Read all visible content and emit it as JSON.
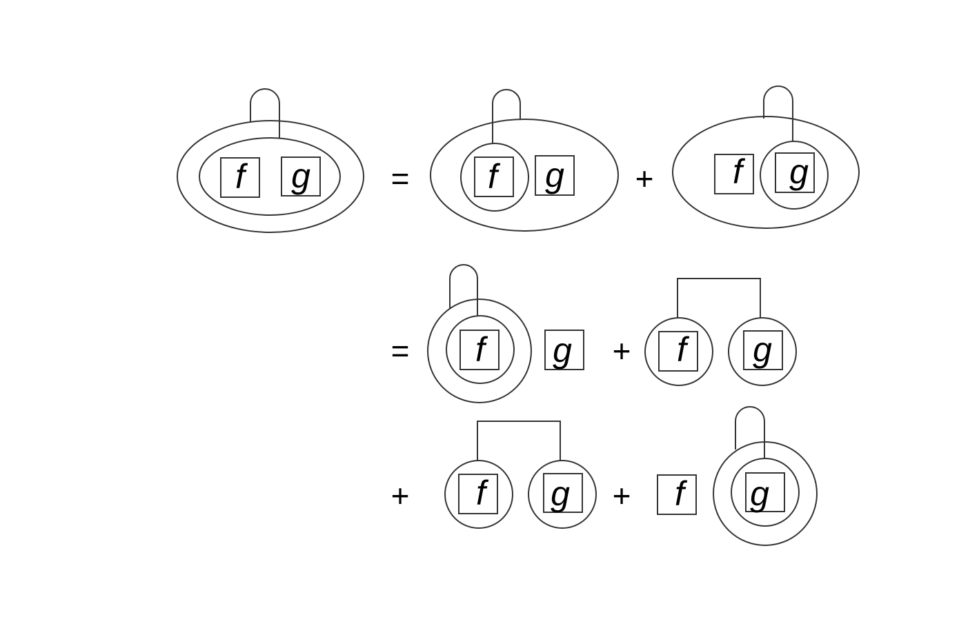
{
  "symbols": {
    "f": "f",
    "g": "g",
    "equals": "=",
    "plus": "+"
  },
  "stroke_color": "#333333",
  "text_color": "#000000",
  "background_color": "#ffffff"
}
